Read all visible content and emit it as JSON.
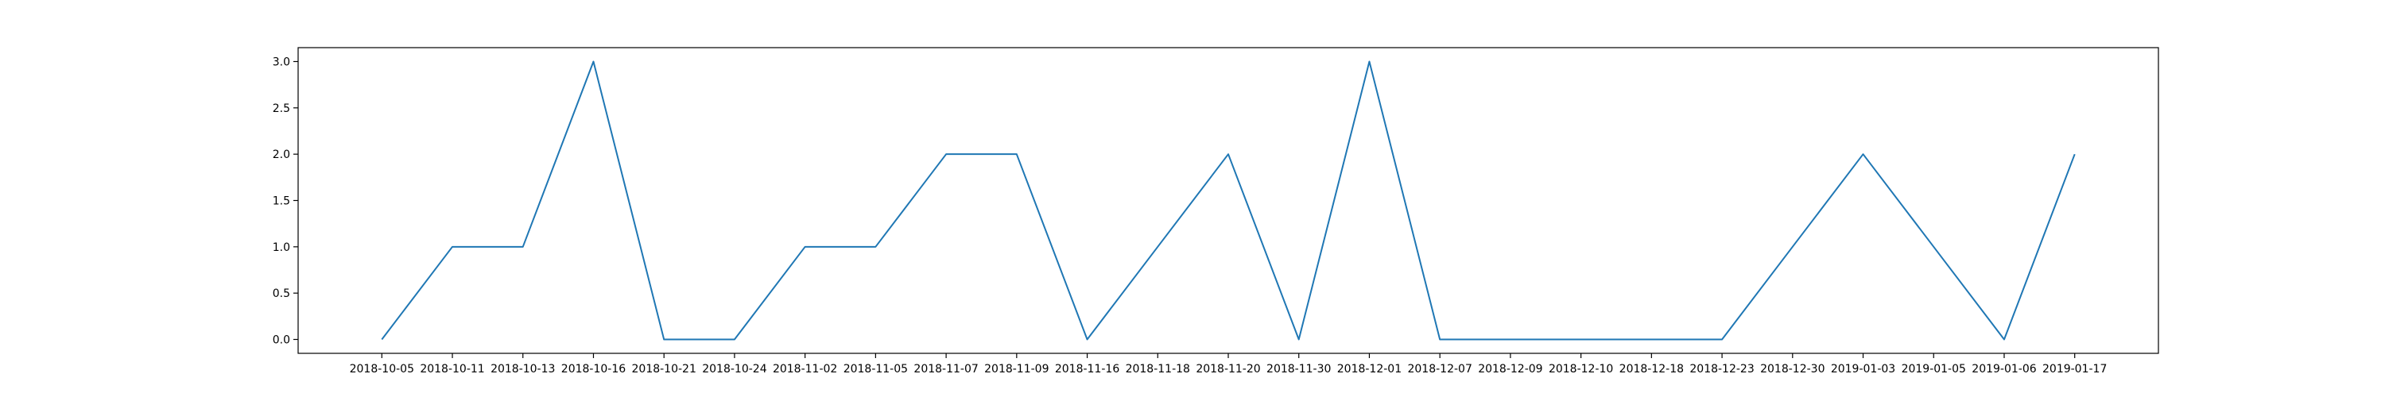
{
  "chart_data": {
    "type": "line",
    "x": [
      "2018-10-05",
      "2018-10-11",
      "2018-10-13",
      "2018-10-16",
      "2018-10-21",
      "2018-10-24",
      "2018-11-02",
      "2018-11-05",
      "2018-11-07",
      "2018-11-09",
      "2018-11-16",
      "2018-11-18",
      "2018-11-20",
      "2018-11-30",
      "2018-12-01",
      "2018-12-07",
      "2018-12-09",
      "2018-12-10",
      "2018-12-18",
      "2018-12-23",
      "2018-12-30",
      "2019-01-03",
      "2019-01-05",
      "2019-01-06",
      "2019-01-17"
    ],
    "series": [
      {
        "values": [
          0,
          1,
          1,
          3,
          0,
          0,
          1,
          1,
          2,
          2,
          0,
          1,
          2,
          0,
          3,
          0,
          0,
          0,
          0,
          0,
          1,
          2,
          1,
          0,
          2
        ],
        "color": "#1f77b4"
      }
    ],
    "y_ticks": [
      "0.0",
      "0.5",
      "1.0",
      "1.5",
      "2.0",
      "2.5",
      "3.0"
    ],
    "ylim": [
      -0.15,
      3.15
    ],
    "x_scale": "categorical",
    "grid": false,
    "legend": false,
    "title": "",
    "xlabel": "",
    "ylabel": ""
  }
}
